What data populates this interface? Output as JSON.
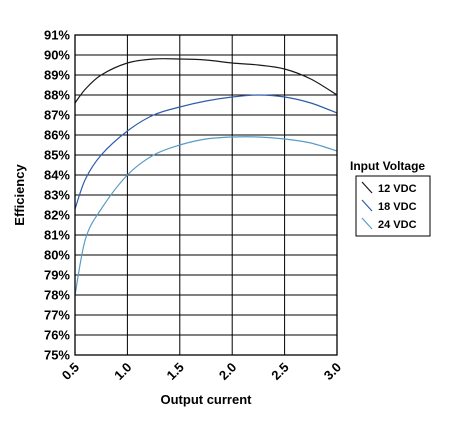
{
  "chart_data": {
    "type": "line",
    "title": "",
    "xlabel": "Output current",
    "ylabel": "Efficiency",
    "xlim": [
      0.5,
      3.0
    ],
    "ylim": [
      75,
      91
    ],
    "x_ticks": [
      0.5,
      1.0,
      1.5,
      2.0,
      2.5,
      3.0
    ],
    "x_tick_labels": [
      "0.5",
      "1.0",
      "1.5",
      "2.0",
      "2.5",
      "3.0"
    ],
    "y_ticks": [
      75,
      76,
      77,
      78,
      79,
      80,
      81,
      82,
      83,
      84,
      85,
      86,
      87,
      88,
      89,
      90,
      91
    ],
    "y_tick_labels": [
      "75%",
      "76%",
      "77%",
      "78%",
      "79%",
      "80%",
      "81%",
      "82%",
      "83%",
      "84%",
      "85%",
      "86%",
      "87%",
      "88%",
      "89%",
      "90%",
      "91%"
    ],
    "grid": true,
    "legend": {
      "title": "Input Voltage",
      "placement": "right"
    },
    "series": [
      {
        "name": "12 VDC",
        "color": "#1a1a1a",
        "x": [
          0.5,
          0.6,
          0.75,
          1.0,
          1.25,
          1.5,
          1.75,
          2.0,
          2.25,
          2.5,
          2.75,
          3.0
        ],
        "y": [
          87.6,
          88.3,
          89.0,
          89.6,
          89.8,
          89.8,
          89.75,
          89.6,
          89.5,
          89.3,
          88.8,
          88.0
        ]
      },
      {
        "name": "18 VDC",
        "color": "#2d5ea8",
        "x": [
          0.5,
          0.6,
          0.75,
          1.0,
          1.25,
          1.5,
          1.75,
          2.0,
          2.25,
          2.5,
          2.75,
          3.0
        ],
        "y": [
          82.3,
          83.8,
          85.0,
          86.2,
          87.0,
          87.4,
          87.7,
          87.9,
          88.0,
          87.9,
          87.6,
          87.1
        ]
      },
      {
        "name": "24 VDC",
        "color": "#5b9bc4",
        "x": [
          0.5,
          0.6,
          0.75,
          1.0,
          1.25,
          1.5,
          1.75,
          2.0,
          2.25,
          2.5,
          2.75,
          3.0
        ],
        "y": [
          78.0,
          80.8,
          82.3,
          84.0,
          85.0,
          85.5,
          85.8,
          85.9,
          85.9,
          85.8,
          85.6,
          85.2
        ]
      }
    ]
  }
}
